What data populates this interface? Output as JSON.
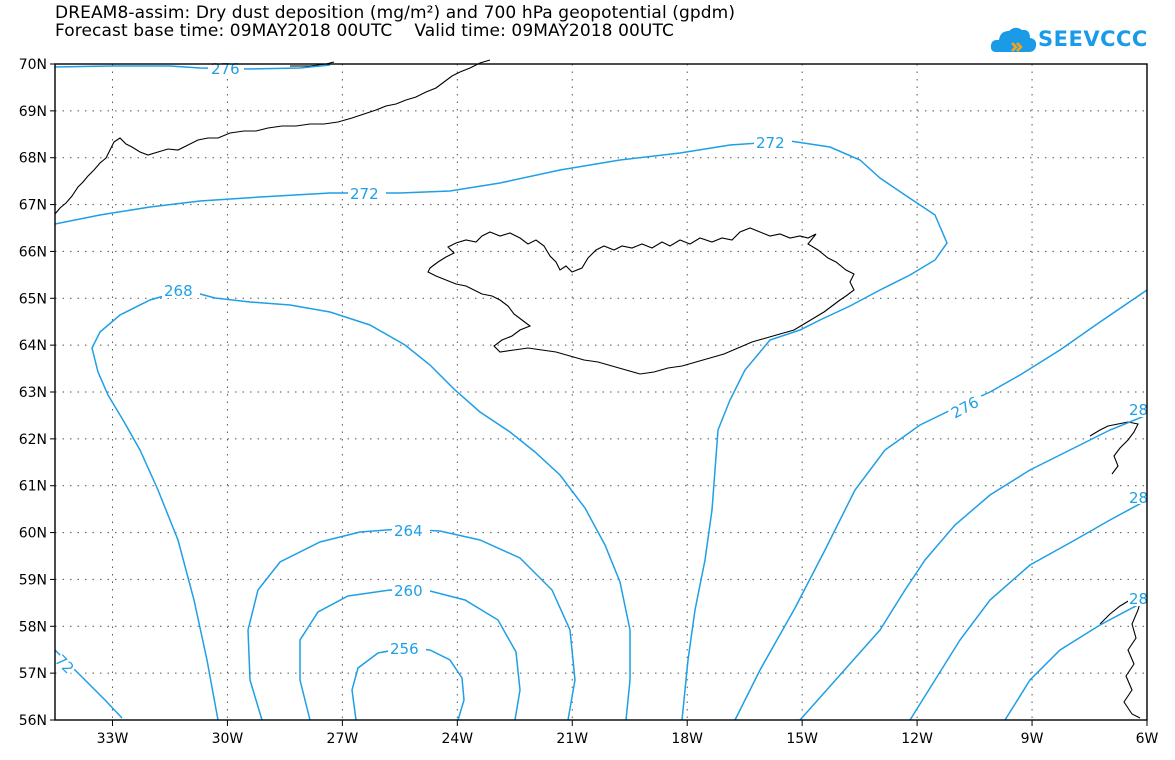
{
  "title": {
    "line1": "DREAM8-assim: Dry dust deposition (mg/m²) and 700 hPa geopotential (gpdm)",
    "line2": "Forecast base time: 09MAY2018 00UTC    Valid time: 09MAY2018 00UTC"
  },
  "logo": {
    "text": "SEEVCCC",
    "icon": "cloud-icon",
    "color": "#1a9be8"
  },
  "map": {
    "lon_labels": [
      "33W",
      "30W",
      "27W",
      "24W",
      "21W",
      "18W",
      "15W",
      "12W",
      "9W",
      "6W"
    ],
    "lat_labels": [
      "70N",
      "69N",
      "68N",
      "67N",
      "66N",
      "65N",
      "64N",
      "63N",
      "62N",
      "61N",
      "60N",
      "59N",
      "58N",
      "57N",
      "56N"
    ],
    "lon_range": [
      -34.5,
      -6
    ],
    "lat_range": [
      56,
      70
    ],
    "contour_color": "#1f9fe6",
    "coastline_color": "#000000",
    "grid": "dotted",
    "contour_labels": {
      "c276_top": "276",
      "c272_north": "272",
      "c272_west": "272",
      "c268": "268",
      "c264": "264",
      "c260": "260",
      "c256": "256",
      "c276_east": "276",
      "c272_sw": "72",
      "c28_a": "28",
      "c28_b": "28",
      "c28_c": "28"
    }
  }
}
